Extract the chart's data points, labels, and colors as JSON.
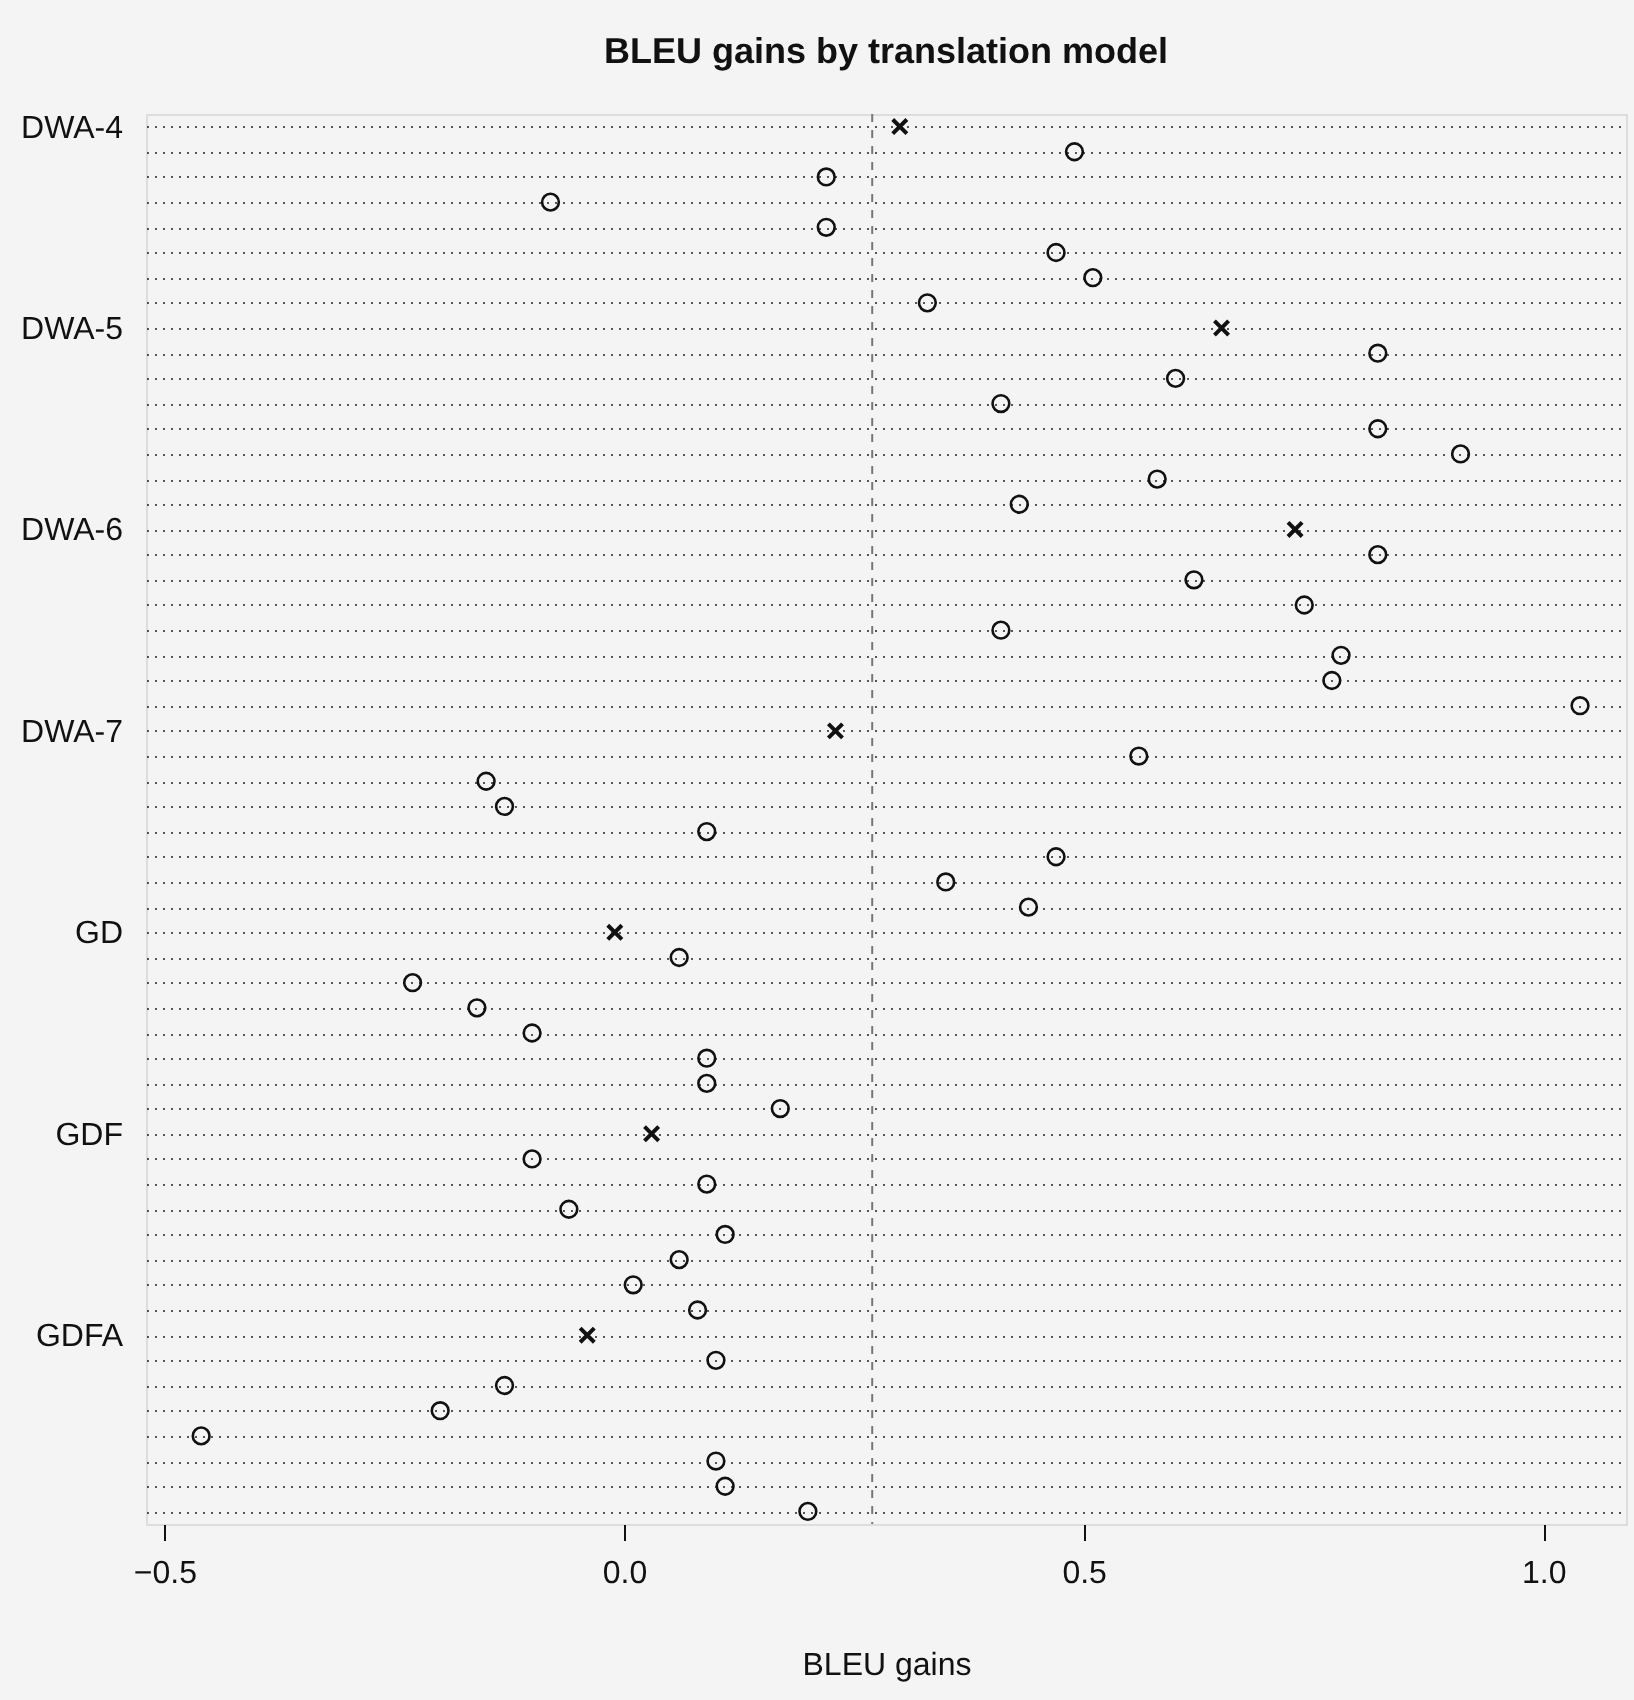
{
  "chart_data": {
    "type": "scatter",
    "orientation": "horizontal",
    "title": "BLEU gains by translation model",
    "xlabel": "BLEU gains",
    "categories": [
      "DWA-4",
      null,
      null,
      null,
      null,
      null,
      null,
      null,
      "DWA-5",
      null,
      null,
      null,
      null,
      null,
      null,
      null,
      "DWA-6",
      null,
      null,
      null,
      null,
      null,
      null,
      null,
      "DWA-7",
      null,
      null,
      null,
      null,
      null,
      null,
      null,
      "GD",
      null,
      null,
      null,
      null,
      null,
      null,
      null,
      "GDF",
      null,
      null,
      null,
      null,
      null,
      null,
      null,
      "GDFA",
      null,
      null,
      null,
      null,
      null,
      null,
      null
    ],
    "series": [
      {
        "color": "#111111",
        "marker": "cross",
        "values": [
          0.3,
          null,
          null,
          null,
          null,
          null,
          null,
          null,
          0.65,
          null,
          null,
          null,
          null,
          null,
          null,
          null,
          0.73,
          null,
          null,
          null,
          null,
          null,
          null,
          null,
          0.23,
          null,
          null,
          null,
          null,
          null,
          null,
          null,
          -0.01,
          null,
          null,
          null,
          null,
          null,
          null,
          null,
          0.03,
          null,
          null,
          null,
          null,
          null,
          null,
          null,
          -0.04,
          null,
          null,
          null,
          null,
          null,
          null,
          null
        ]
      },
      {
        "color": "#111111",
        "marker": "circle",
        "values": [
          null,
          0.49,
          0.22,
          -0.08,
          0.22,
          0.47,
          0.51,
          0.33,
          null,
          0.82,
          0.6,
          0.41,
          0.82,
          0.91,
          0.58,
          0.43,
          null,
          0.82,
          0.62,
          0.74,
          0.41,
          0.78,
          0.77,
          1.04,
          null,
          0.56,
          -0.15,
          -0.13,
          0.09,
          0.47,
          0.35,
          0.44,
          null,
          0.06,
          -0.23,
          -0.16,
          -0.1,
          0.09,
          0.09,
          0.17,
          null,
          -0.1,
          0.09,
          -0.06,
          0.11,
          0.06,
          0.01,
          0.08,
          null,
          0.1,
          -0.13,
          -0.2,
          -0.46,
          0.1,
          0.11,
          0.2
        ]
      }
    ],
    "xlim": [
      -0.52,
      1.09
    ],
    "xticks": [
      {
        "value": -0.5,
        "label": "−0.5"
      },
      {
        "value": 0,
        "label": "0.0"
      },
      {
        "value": 0.5,
        "label": "0.5"
      },
      {
        "value": 1.0,
        "label": "1.0"
      }
    ],
    "ref_lines": [
      {
        "axis": "x",
        "value": 0.27,
        "color": "#777777",
        "line_style": "dashed"
      }
    ],
    "grid": "y"
  }
}
